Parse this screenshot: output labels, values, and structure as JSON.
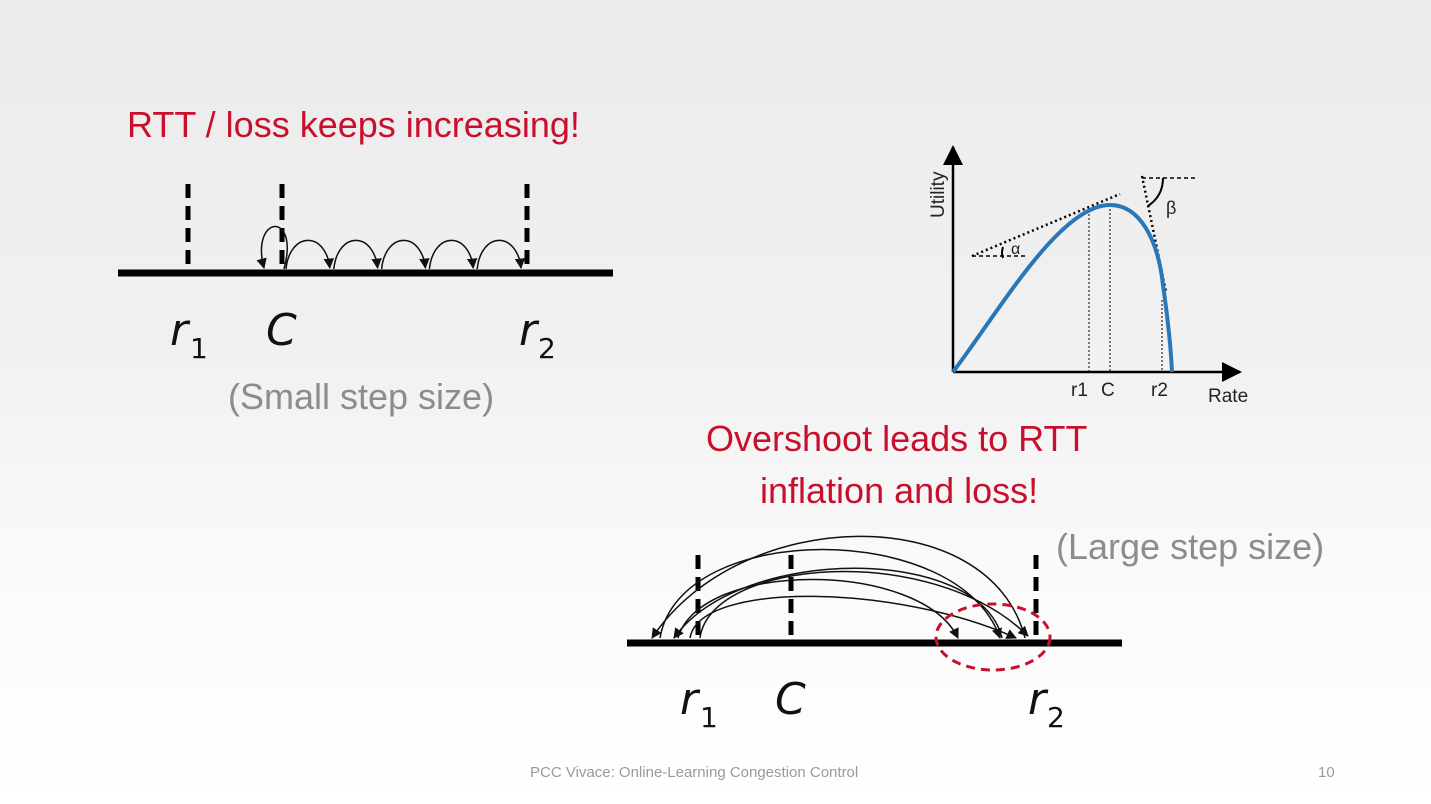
{
  "slide": {
    "top_title": "RTT / loss keeps increasing!",
    "small_step_caption": "(Small step size)",
    "overshoot_line1": "Overshoot leads to RTT",
    "overshoot_line2": "inflation and loss!",
    "large_step_caption": "(Large step size)",
    "footer": "PCC Vivace: Online-Learning Congestion Control",
    "page_number": "10"
  },
  "top_diagram": {
    "labels": {
      "r1_main": "r",
      "r1_sub": "1",
      "c": "C",
      "r2_main": "r",
      "r2_sub": "2"
    },
    "hops": 6
  },
  "bottom_diagram": {
    "labels": {
      "r1_main": "r",
      "r1_sub": "1",
      "c": "C",
      "r2_main": "r",
      "r2_sub": "2"
    },
    "arc_count": 6
  },
  "utility_plot": {
    "y_label": "Utility",
    "x_label": "Rate",
    "x_ticks": [
      "r1",
      "C",
      "r2"
    ],
    "alpha_symbol": "α",
    "beta_symbol": "β",
    "curve_color": "#2a77b8"
  },
  "colors": {
    "accent_red": "#c8102e",
    "caption_gray": "#8c8c8c",
    "curve_blue": "#2a77b8"
  }
}
